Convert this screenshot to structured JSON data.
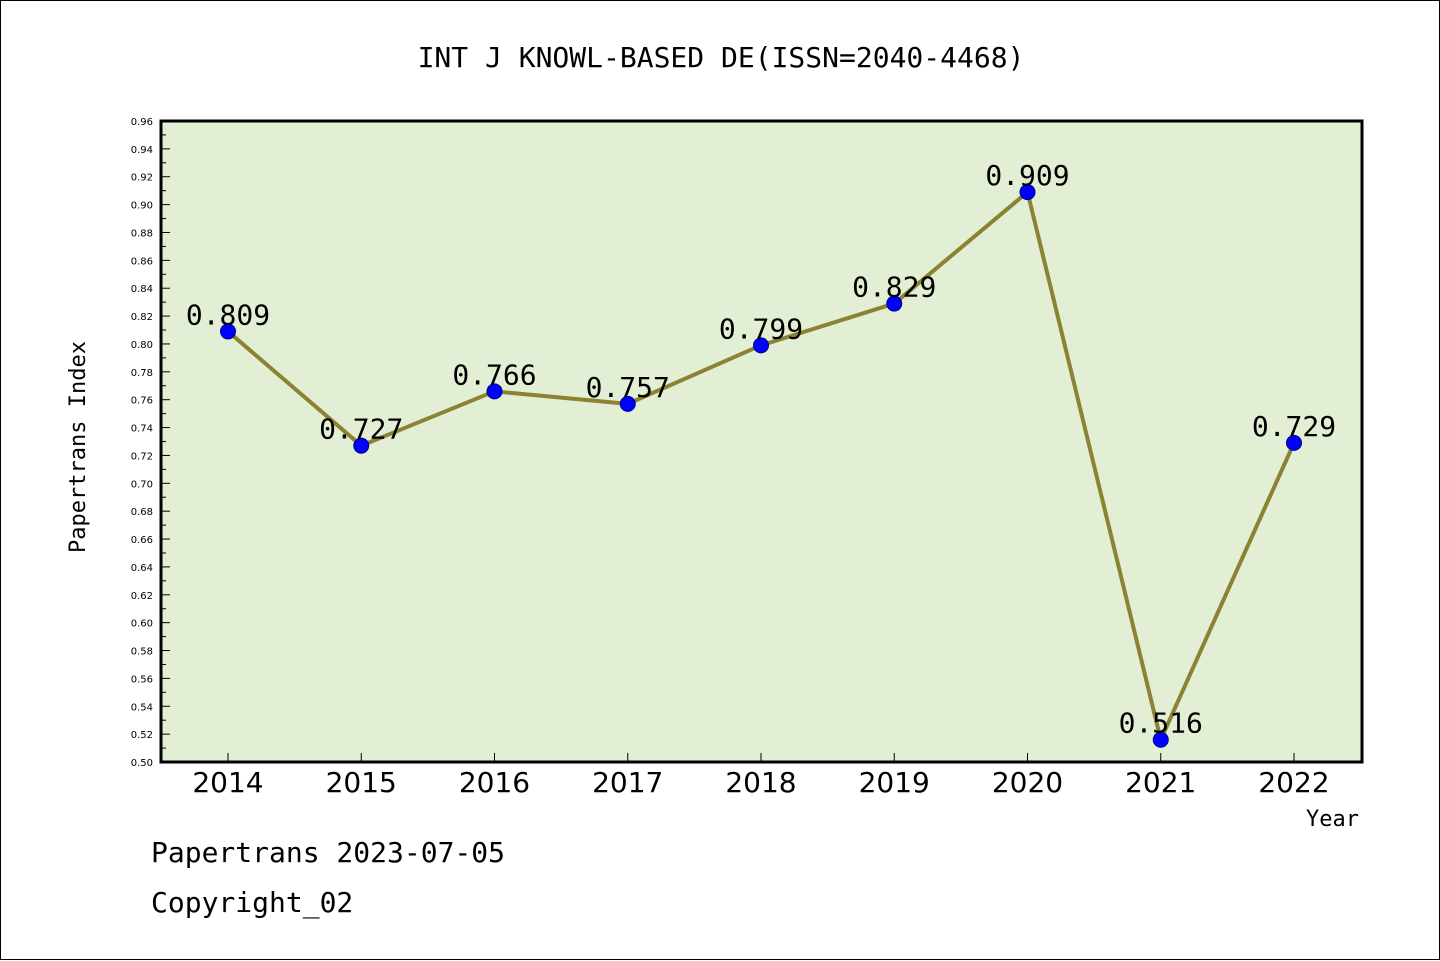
{
  "chart_data": {
    "type": "line",
    "title": "INT J KNOWL-BASED DE(ISSN=2040-4468)",
    "xlabel": "Year",
    "ylabel": "Papertrans Index",
    "categories": [
      "2014",
      "2015",
      "2016",
      "2017",
      "2018",
      "2019",
      "2020",
      "2021",
      "2022"
    ],
    "values": [
      0.809,
      0.727,
      0.766,
      0.757,
      0.799,
      0.829,
      0.909,
      0.516,
      0.729
    ],
    "data_labels": [
      "0.809",
      "0.727",
      "0.766",
      "0.757",
      "0.799",
      "0.829",
      "0.909",
      "0.516",
      "0.729"
    ],
    "ylim": [
      0.5,
      0.96
    ],
    "yticks": [
      "0.50",
      "0.52",
      "0.54",
      "0.56",
      "0.58",
      "0.60",
      "0.62",
      "0.64",
      "0.66",
      "0.68",
      "0.70",
      "0.72",
      "0.74",
      "0.76",
      "0.78",
      "0.80",
      "0.82",
      "0.84",
      "0.86",
      "0.88",
      "0.90",
      "0.92",
      "0.94",
      "0.96"
    ],
    "grid": false,
    "colors": {
      "plot_background": "#e2efd5",
      "line": "#8b8233",
      "marker": "#0000ff"
    }
  },
  "footer": {
    "line1": "Papertrans 2023-07-05",
    "line2": "Copyright_02"
  }
}
